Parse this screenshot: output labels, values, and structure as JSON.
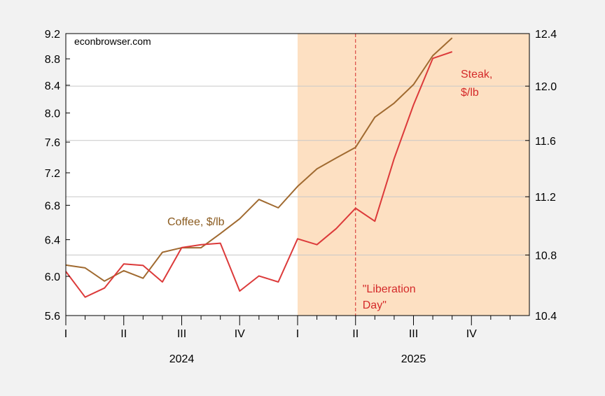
{
  "chart_data": {
    "type": "line",
    "watermark": "econbrowser.com",
    "left_axis": {
      "ylim": [
        5.6,
        9.2
      ],
      "ticks": [
        5.6,
        6.0,
        6.4,
        6.8,
        7.2,
        7.6,
        8.0,
        8.4,
        8.8,
        9.2
      ],
      "tick_labels": [
        "5.6",
        "6.0",
        "6.4",
        "6.8",
        "7.2",
        "7.6",
        "8.0",
        "8.4",
        "8.8",
        "9.2"
      ],
      "scale": "log"
    },
    "right_axis": {
      "ylim": [
        10.4,
        12.4
      ],
      "ticks": [
        10.4,
        10.8,
        11.2,
        11.6,
        12.0,
        12.4
      ],
      "tick_labels": [
        "10.4",
        "10.8",
        "11.2",
        "11.6",
        "12.0",
        "12.4"
      ],
      "scale": "log"
    },
    "x_axis": {
      "quarter_labels": [
        "I",
        "II",
        "III",
        "IV",
        "I",
        "II",
        "III",
        "IV"
      ],
      "year_labels": [
        "2024",
        "2025"
      ],
      "months": [
        "2024-01",
        "2024-02",
        "2024-03",
        "2024-04",
        "2024-05",
        "2024-06",
        "2024-07",
        "2024-08",
        "2024-09",
        "2024-10",
        "2024-11",
        "2024-12",
        "2025-01",
        "2025-02",
        "2025-03",
        "2025-04",
        "2025-05",
        "2025-06",
        "2025-07",
        "2025-08",
        "2025-09",
        "2025-10",
        "2025-11",
        "2025-12"
      ]
    },
    "shaded_region": {
      "from": "2025-01",
      "to": "2025-12",
      "color": "#fde0c2"
    },
    "vertical_line": {
      "at": "2025-04",
      "color": "#d42a2a",
      "label_lines": [
        "\"Liberation",
        "Day\""
      ]
    },
    "grid": true,
    "series": [
      {
        "name": "Coffee, $/lb",
        "axis": "left",
        "color": "#a06a30",
        "label_lines": [
          "Coffee, $/lb"
        ],
        "x": [
          "2024-01",
          "2024-02",
          "2024-03",
          "2024-04",
          "2024-05",
          "2024-06",
          "2024-07",
          "2024-08",
          "2024-09",
          "2024-10",
          "2024-11",
          "2024-12",
          "2025-01",
          "2025-02",
          "2025-03",
          "2025-04",
          "2025-05",
          "2025-06",
          "2025-07",
          "2025-08",
          "2025-09"
        ],
        "values": [
          6.12,
          6.09,
          5.95,
          6.06,
          5.98,
          6.26,
          6.31,
          6.31,
          6.47,
          6.64,
          6.87,
          6.77,
          7.03,
          7.25,
          7.39,
          7.53,
          7.94,
          8.14,
          8.41,
          8.85,
          9.13
        ]
      },
      {
        "name": "Steak, $/lb",
        "axis": "right",
        "color": "#dc3a3a",
        "label_lines": [
          "Steak,",
          "$/lb"
        ],
        "x": [
          "2024-01",
          "2024-02",
          "2024-03",
          "2024-04",
          "2024-05",
          "2024-06",
          "2024-07",
          "2024-08",
          "2024-09",
          "2024-10",
          "2024-11",
          "2024-12",
          "2025-01",
          "2025-02",
          "2025-03",
          "2025-04",
          "2025-05",
          "2025-06",
          "2025-07",
          "2025-08",
          "2025-09"
        ],
        "values": [
          10.69,
          10.52,
          10.58,
          10.74,
          10.73,
          10.62,
          10.85,
          10.87,
          10.88,
          10.56,
          10.66,
          10.62,
          10.91,
          10.87,
          10.98,
          11.12,
          11.03,
          11.47,
          11.86,
          12.21,
          12.26
        ]
      }
    ]
  }
}
